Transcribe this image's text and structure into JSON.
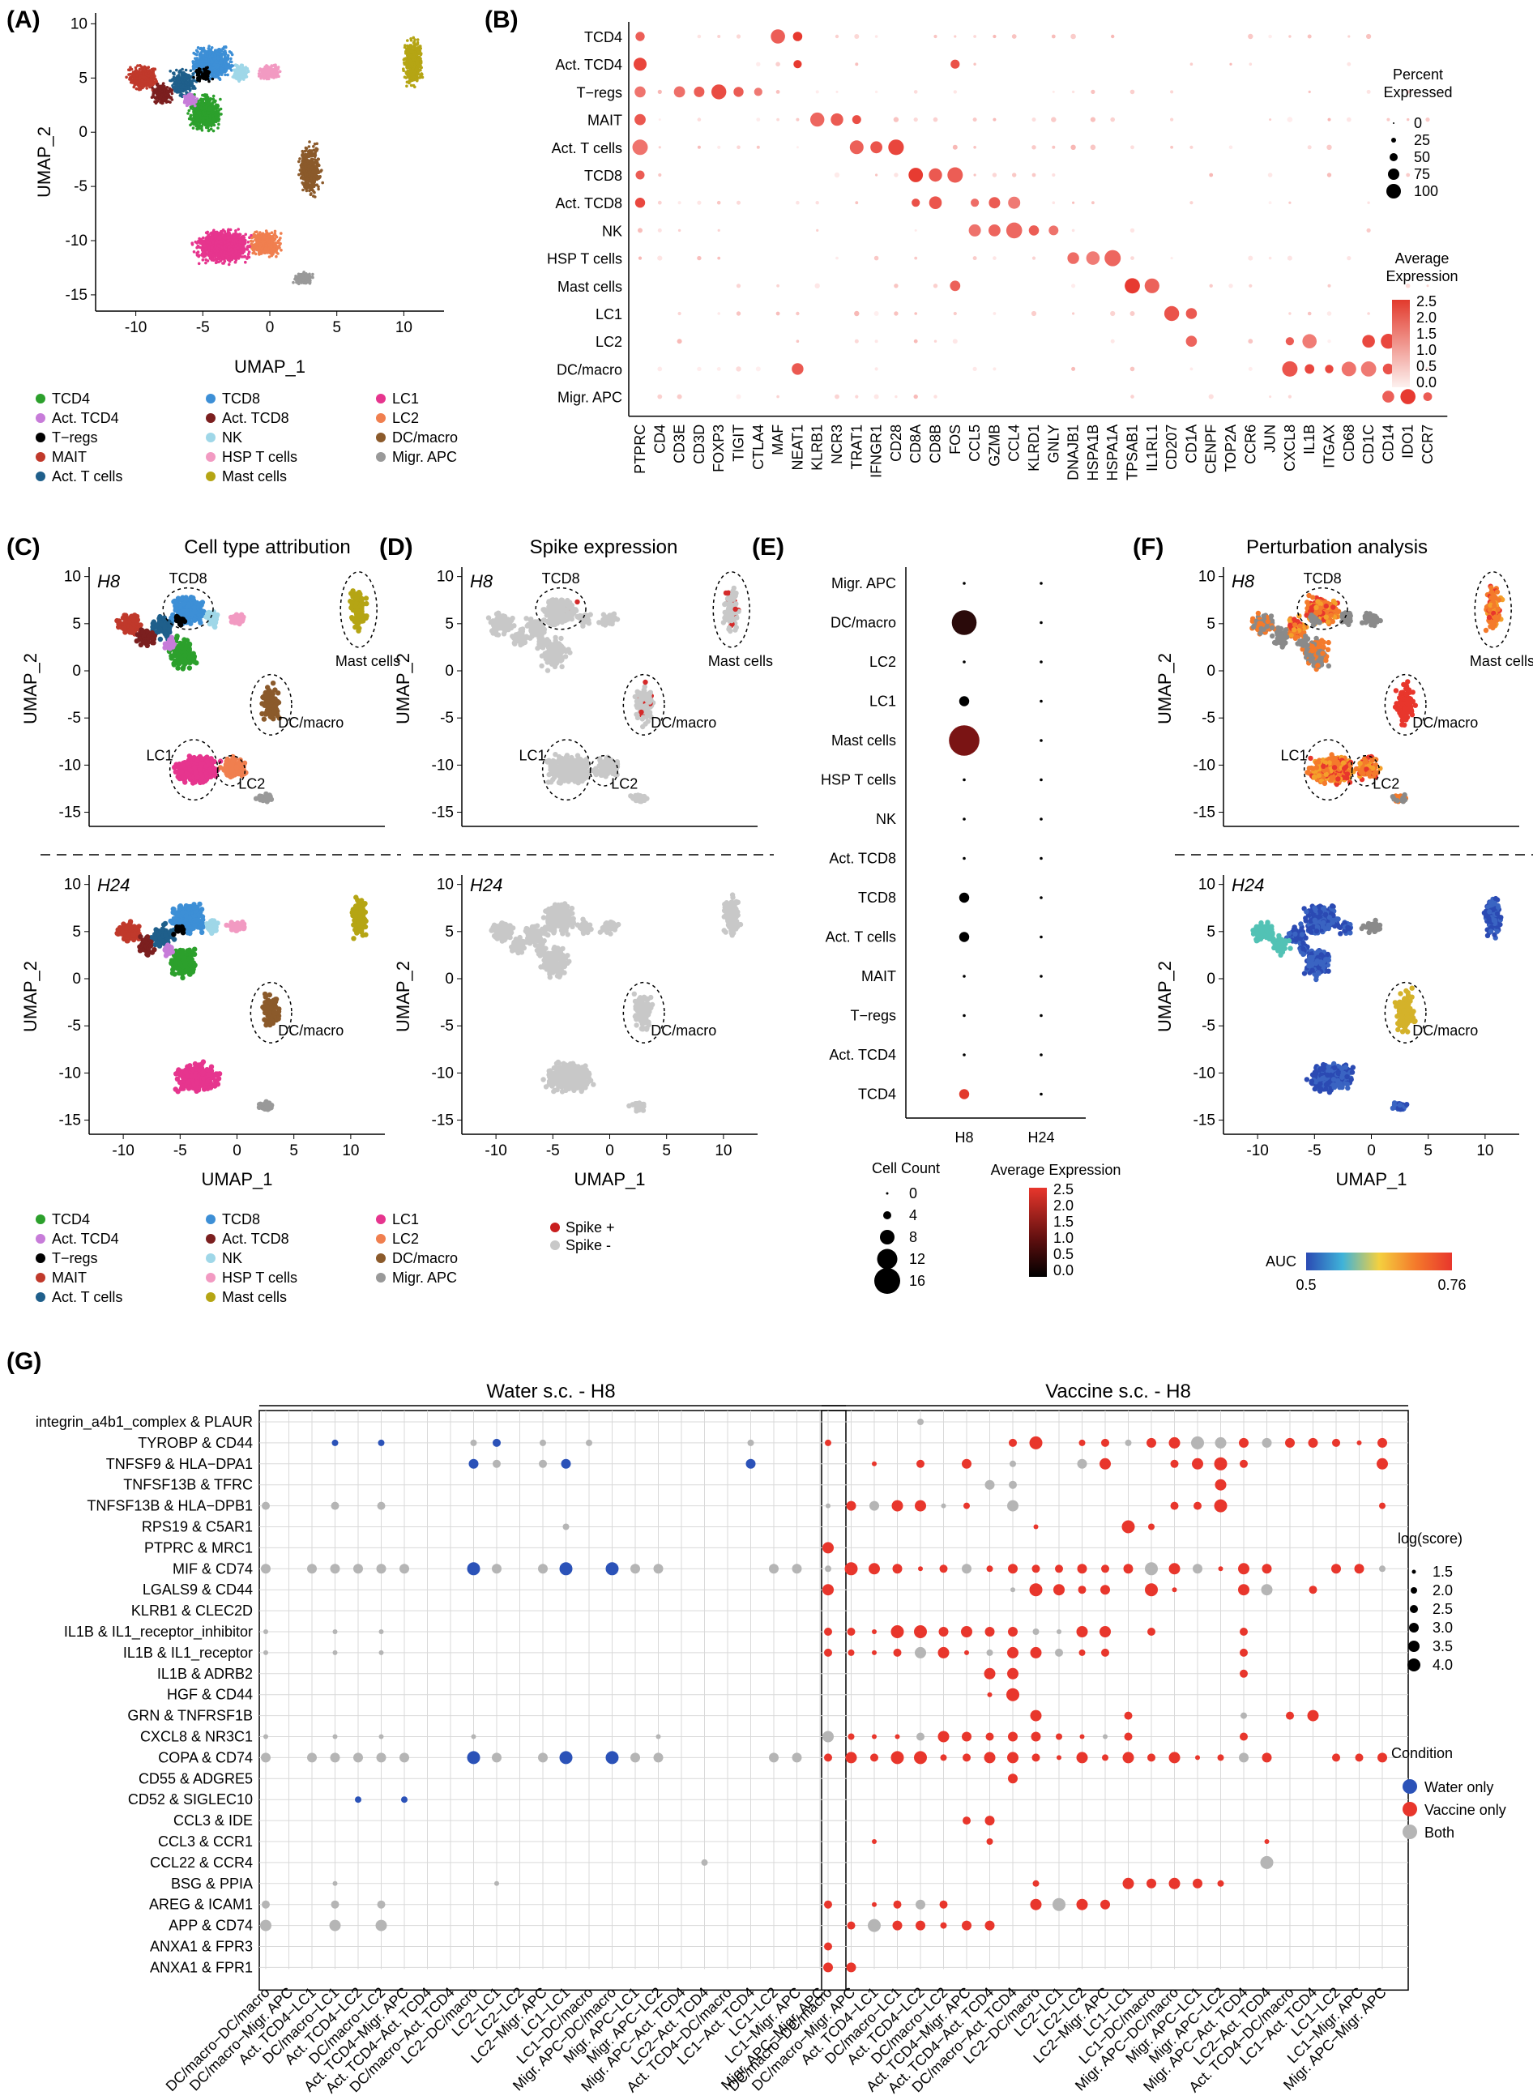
{
  "panels": {
    "A": "(A)",
    "B": "(B)",
    "C": "(C)",
    "D": "(D)",
    "E": "(E)",
    "F": "(F)",
    "G": "(G)"
  },
  "titles": {
    "C": "Cell type attribution",
    "D": "Spike expression",
    "F": "Perturbation analysis",
    "G_left": "Water s.c. - H8",
    "G_right": "Vaccine s.c. - H8"
  },
  "axes": {
    "umap1": "UMAP_1",
    "umap2": "UMAP_2",
    "A_xticks": [
      "-10",
      "-5",
      "0",
      "5",
      "10"
    ],
    "A_yticks": [
      "10",
      "5",
      "0",
      "-5",
      "-10",
      "-15"
    ],
    "C_xticks": [
      "-10",
      "-5",
      "0",
      "5",
      "10"
    ],
    "C_yticks": [
      "10",
      "5",
      "0",
      "-5",
      "-10",
      "-15"
    ]
  },
  "time_labels": {
    "h8": "H8",
    "h24": "H24"
  },
  "cluster_labels": {
    "tcd8": "TCD8",
    "mast": "Mast cells",
    "dcmacro": "DC/macro",
    "lc1": "LC1",
    "lc2": "LC2"
  },
  "cell_types": [
    {
      "name": "TCD4",
      "color": "#2ca02c"
    },
    {
      "name": "Act. TCD4",
      "color": "#c77cd9"
    },
    {
      "name": "T−regs",
      "color": "#000000"
    },
    {
      "name": "MAIT",
      "color": "#c0392b"
    },
    {
      "name": "Act. T cells",
      "color": "#1f5f8b"
    },
    {
      "name": "TCD8",
      "color": "#3d8fd6"
    },
    {
      "name": "Act. TCD8",
      "color": "#7b1f1f"
    },
    {
      "name": "NK",
      "color": "#9fd7e8"
    },
    {
      "name": "HSP T cells",
      "color": "#f29ac2"
    },
    {
      "name": "Mast cells",
      "color": "#b5a514"
    },
    {
      "name": "LC1",
      "color": "#e6358e"
    },
    {
      "name": "LC2",
      "color": "#f07f4f"
    },
    {
      "name": "DC/macro",
      "color": "#8b5a2b"
    },
    {
      "name": "Migr. APC",
      "color": "#999999"
    }
  ],
  "spike_legend": [
    {
      "label": "Spike +",
      "color": "#c81e1e"
    },
    {
      "label": "Spike -",
      "color": "#c8c8c8"
    }
  ],
  "auc_legend": {
    "title": "AUC",
    "min": "0.5",
    "max": "0.76",
    "colors": [
      "#2b4ab3",
      "#3fb3d9",
      "#f4d03f",
      "#f47a2b",
      "#e8362c"
    ]
  },
  "dotplot_B": {
    "genes": [
      "PTPRC",
      "CD4",
      "CD3E",
      "CD3D",
      "FOXP3",
      "TIGIT",
      "CTLA4",
      "MAF",
      "NEAT1",
      "KLRB1",
      "NCR3",
      "TRAT1",
      "IFNGR1",
      "CD28",
      "CD8A",
      "CD8B",
      "FOS",
      "CCL5",
      "GZMB",
      "CCL4",
      "KLRD1",
      "GNLY",
      "DNAJB1",
      "HSPA1B",
      "HSPA1A",
      "TPSAB1",
      "IL1RL1",
      "CD207",
      "CD1A",
      "CENPF",
      "TOP2A",
      "CCR6",
      "JUN",
      "CXCL8",
      "IL1B",
      "ITGAX",
      "CD68",
      "CD1C",
      "CD14",
      "IDO1",
      "CCR7"
    ],
    "clusters": [
      "TCD4",
      "Act. TCD4",
      "T−regs",
      "MAIT",
      "Act. T cells",
      "TCD8",
      "Act. TCD8",
      "NK",
      "HSP T cells",
      "Mast cells",
      "LC1",
      "LC2",
      "DC/macro",
      "Migr. APC"
    ],
    "pct_title": "Percent Expressed",
    "pct_labels": [
      "0",
      "25",
      "50",
      "75",
      "100"
    ],
    "avg_title": "Average Expression",
    "avg_labels": [
      "2.5",
      "2.0",
      "1.5",
      "1.0",
      "0.5",
      "0.0"
    ]
  },
  "dotplot_E": {
    "rows": [
      "Migr. APC",
      "DC/macro",
      "LC2",
      "LC1",
      "Mast cells",
      "HSP T cells",
      "NK",
      "Act. TCD8",
      "TCD8",
      "Act. T cells",
      "MAIT",
      "T−regs",
      "Act. TCD4",
      "TCD4"
    ],
    "cols": [
      "H8",
      "H24"
    ],
    "count_title": "Cell Count",
    "count_labels": [
      "0",
      "4",
      "8",
      "12",
      "16"
    ],
    "avg_title": "Average Expression",
    "avg_labels": [
      "2.5",
      "2.0",
      "1.5",
      "1.0",
      "0.5",
      "0.0"
    ]
  },
  "chart_data": [
    {
      "type": "scatter",
      "panel": "A",
      "title": "",
      "xlabel": "UMAP_1",
      "ylabel": "UMAP_2",
      "xlim": [
        -13,
        13
      ],
      "ylim": [
        -16,
        11
      ]
    },
    {
      "type": "heatmap",
      "panel": "B",
      "xlabel": "",
      "ylabel": "",
      "note": "dot plot of genes vs clusters"
    },
    {
      "type": "scatter",
      "panel": "C",
      "title": "Cell type attribution",
      "xlabel": "UMAP_1",
      "ylabel": "UMAP_2"
    },
    {
      "type": "scatter",
      "panel": "D",
      "title": "Spike expression",
      "xlabel": "UMAP_1",
      "ylabel": "UMAP_2"
    },
    {
      "type": "scatter",
      "panel": "E",
      "xlabel": "",
      "ylabel": "",
      "categories": [
        "H8",
        "H24"
      ],
      "series": [
        {
          "name": "DC/macro",
          "cell_count": [
            10,
            0
          ]
        },
        {
          "name": "Mast cells",
          "cell_count": [
            16,
            0
          ]
        },
        {
          "name": "LC1",
          "cell_count": [
            1,
            0
          ]
        },
        {
          "name": "TCD8",
          "cell_count": [
            1,
            0
          ]
        },
        {
          "name": "Act. T cells",
          "cell_count": [
            1,
            0
          ]
        },
        {
          "name": "TCD4",
          "cell_count": [
            1,
            0
          ]
        }
      ]
    },
    {
      "type": "scatter",
      "panel": "F",
      "title": "Perturbation analysis",
      "xlabel": "UMAP_1",
      "ylabel": "UMAP_2"
    },
    {
      "type": "heatmap",
      "panel": "G",
      "xlabel": "",
      "ylabel": "",
      "note": "ligand-receptor dot plot, Water vs Vaccine"
    }
  ],
  "dotplot_G": {
    "pairs": [
      "integrin_a4b1_complex & PLAUR",
      "TYROBP & CD44",
      "TNFSF9 & HLA−DPA1",
      "TNFSF13B & TFRC",
      "TNFSF13B & HLA−DPB1",
      "RPS19 & C5AR1",
      "PTPRC & MRC1",
      "MIF & CD74",
      "LGALS9 & CD44",
      "KLRB1 & CLEC2D",
      "IL1B & IL1_receptor_inhibitor",
      "IL1B & IL1_receptor",
      "IL1B & ADRB2",
      "HGF & CD44",
      "GRN & TNFRSF1B",
      "CXCL8 & NR3C1",
      "COPA & CD74",
      "CD55 & ADGRE5",
      "CD52 & SIGLEC10",
      "CCL3 & IDE",
      "CCL3 & CCR1",
      "CCL22 & CCR4",
      "BSG & PPIA",
      "AREG & ICAM1",
      "APP & CD74",
      "ANXA1 & FPR3",
      "ANXA1 & FPR1"
    ],
    "left_cols": [
      "DC/macro−DC/macro",
      "DC/macro−Migr. APC",
      "Act. TCD4−LC1",
      "DC/macro−LC1",
      "Act. TCD4−LC2",
      "DC/macro−LC2",
      "Act. TCD4−Migr. APC",
      "Act. TCD4−Act. TCD4",
      "DC/macro−Act. TCD4",
      "LC2−DC/macro",
      "LC2−LC1",
      "LC2−LC2",
      "LC2−Migr. APC",
      "LC1−LC1",
      "LC1−DC/macro",
      "Migr. APC−DC/macro",
      "Migr. APC−LC1",
      "Migr. APC−LC2",
      "Migr. APC−Act. TCD4",
      "LC2−Act. TCD4",
      "Act. TCD4−DC/macro",
      "LC1−Act. TCD4",
      "LC1−LC2",
      "LC1−Migr. APC",
      "Migr. APC−Migr. APC"
    ],
    "right_cols": [
      "DC/macro−DC/macro",
      "DC/macro−Migr. APC",
      "Act. TCD4−LC1",
      "DC/macro−LC1",
      "Act. TCD4−LC2",
      "DC/macro−LC2",
      "Act. TCD4−Migr. APC",
      "Act. TCD4−Act. TCD4",
      "DC/macro−Act. TCD4",
      "LC2−DC/macro",
      "LC2−LC1",
      "LC2−LC2",
      "LC2−Migr. APC",
      "LC1−LC1",
      "LC1−DC/macro",
      "Migr. APC−DC/macro",
      "Migr. APC−LC1",
      "Migr. APC−LC2",
      "Migr. APC−Act. TCD4",
      "LC2−Act. TCD4",
      "Act. TCD4−DC/macro",
      "LC1−Act. TCD4",
      "LC1−LC2",
      "LC1−Migr. APC",
      "Migr. APC−Migr. APC"
    ],
    "score_title": "log(score)",
    "score_labels": [
      "1.5",
      "2.0",
      "2.5",
      "3.0",
      "3.5",
      "4.0"
    ],
    "condition_title": "Condition",
    "conditions": [
      {
        "label": "Water only",
        "color": "#2b52b8"
      },
      {
        "label": "Vaccine only",
        "color": "#e8362c"
      },
      {
        "label": "Both",
        "color": "#b5b5b5"
      }
    ]
  }
}
